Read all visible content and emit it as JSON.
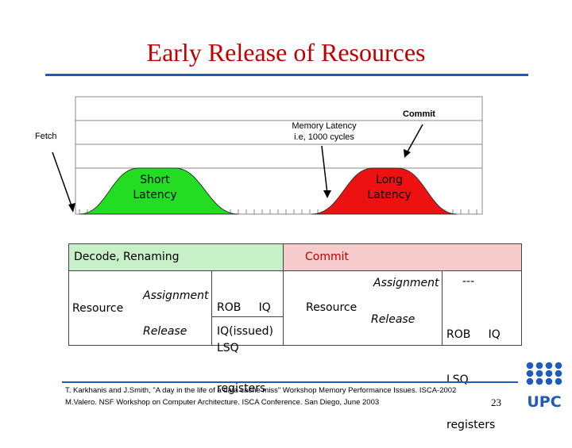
{
  "title": "Early Release of Resources",
  "timeline": {
    "commit_label": "Commit",
    "memory_latency_line1": "Memory Latency",
    "memory_latency_line2": "i.e, 1000 cycles",
    "fetch_label": "Fetch",
    "short_latency_line1": "Short",
    "short_latency_line2": "Latency",
    "long_latency_line1": "Long",
    "long_latency_line2": "Latency",
    "colors": {
      "short": "#22dd22",
      "long": "#ee1111"
    }
  },
  "table": {
    "decode_header": "Decode, Renaming",
    "commit_header": "Commit",
    "left": {
      "resource": "Resource",
      "assignment": "Assignment",
      "assignment_value_line1": "ROB     IQ",
      "assignment_value_line2": "LSQ",
      "assignment_value_line3": "registers",
      "release": "Release",
      "release_value": "IQ(issued)"
    },
    "right": {
      "resource": "Resource",
      "assignment": "Assignment",
      "assignment_value": "---",
      "release": "Release",
      "release_value_line1": "ROB     IQ",
      "release_value_line2": "LSQ",
      "release_value_line3": "registers"
    },
    "colors": {
      "decode_header_bg": "#c8f0c8",
      "commit_header_bg": "#f7cccc"
    }
  },
  "footer": {
    "line1": "T. Karkhanis and J.Smith, \"A day in the life of a data cache miss\" Workshop Memory Performance Issues. ISCA-2002",
    "line2": "M.Valero. NSF Workshop on Computer Architecture. ISCA Conference. San Diego, June 2003",
    "page_number": "23",
    "logo_text": "UPC",
    "logo_color": "#1f5bbd"
  }
}
